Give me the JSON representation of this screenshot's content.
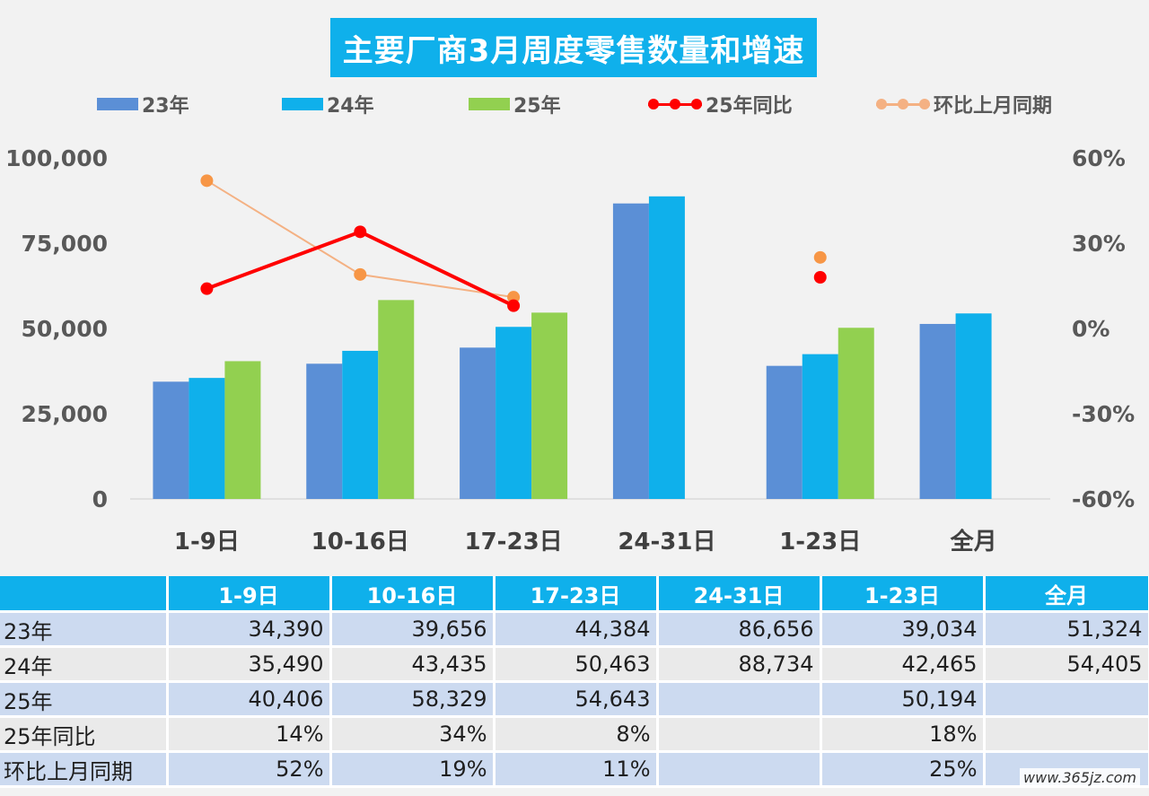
{
  "chart_data": {
    "type": "bar",
    "title": "主要厂商3月周度零售数量和增速",
    "categories": [
      "1-9日",
      "10-16日",
      "17-23日",
      "24-31日",
      "1-23日",
      "全月"
    ],
    "series": [
      {
        "name": "23年",
        "type": "bar",
        "color": "#5b8fd6",
        "values": [
          34390,
          39656,
          44384,
          86656,
          39034,
          51324
        ]
      },
      {
        "name": "24年",
        "type": "bar",
        "color": "#0fb0eb",
        "values": [
          35490,
          43435,
          50463,
          88734,
          42465,
          54405
        ]
      },
      {
        "name": "25年",
        "type": "bar",
        "color": "#92d050",
        "values": [
          40406,
          58329,
          54643,
          null,
          50194,
          null
        ]
      },
      {
        "name": "25年同比",
        "type": "line",
        "axis": "right",
        "color": "#ff0000",
        "values": [
          14,
          34,
          8,
          null,
          18,
          null
        ]
      },
      {
        "name": "环比上月同期",
        "type": "line",
        "axis": "right",
        "color": "#f4b183",
        "values": [
          52,
          19,
          11,
          null,
          25,
          null
        ]
      }
    ],
    "yaxis_left": {
      "min": 0,
      "max": 100000,
      "ticks": [
        "0",
        "25,000",
        "50,000",
        "75,000",
        "100,000"
      ]
    },
    "yaxis_right": {
      "min": -60,
      "max": 60,
      "ticks": [
        "-60%",
        "-30%",
        "0%",
        "30%",
        "60%"
      ]
    },
    "legend_position": "top",
    "grid": false
  },
  "table": {
    "headers": [
      "",
      "1-9日",
      "10-16日",
      "17-23日",
      "24-31日",
      "1-23日",
      "全月"
    ],
    "rows": [
      {
        "label": "23年",
        "cells": [
          "34,390",
          "39,656",
          "44,384",
          "86,656",
          "39,034",
          "51,324"
        ]
      },
      {
        "label": "24年",
        "cells": [
          "35,490",
          "43,435",
          "50,463",
          "88,734",
          "42,465",
          "54,405"
        ]
      },
      {
        "label": "25年",
        "cells": [
          "40,406",
          "58,329",
          "54,643",
          "",
          "50,194",
          ""
        ]
      },
      {
        "label": "25年同比",
        "cells": [
          "14%",
          "34%",
          "8%",
          "",
          "18%",
          ""
        ]
      },
      {
        "label": "环比上月同期",
        "cells": [
          "52%",
          "19%",
          "11%",
          "",
          "25%",
          ""
        ]
      }
    ]
  },
  "watermark": "www.365jz.com",
  "colors": {
    "accent": "#0fb0eb",
    "bar23": "#5b8fd6",
    "bar24": "#0fb0eb",
    "bar25": "#92d050",
    "yoy": "#ff0000",
    "mom": "#f4b183"
  }
}
